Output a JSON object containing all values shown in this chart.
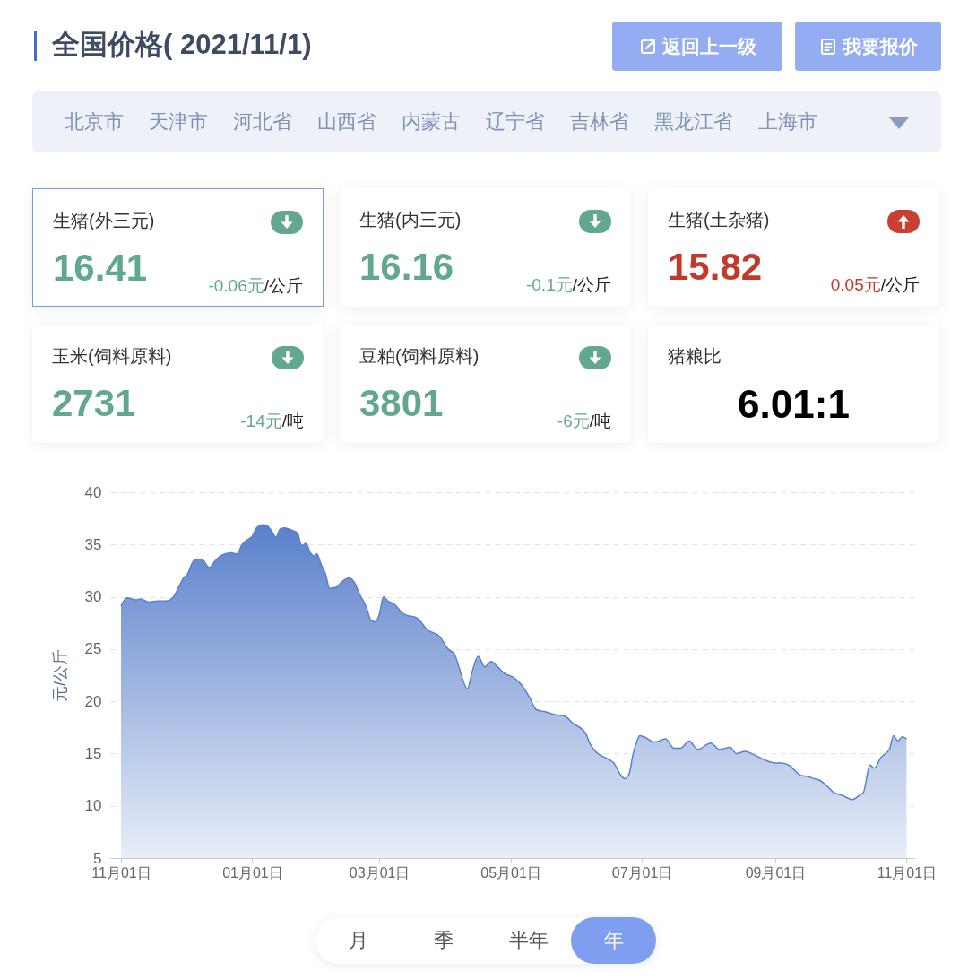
{
  "chart_data": [
    {
      "type": "other",
      "title": "全国价格( 2021/11/1)",
      "annotations": [
        "返回上一级",
        "我要报价",
        "北京市",
        "天津市",
        "河北省",
        "山西省",
        "内蒙古",
        "辽宁省",
        "吉林省",
        "黑龙江省",
        "上海市"
      ]
    },
    {
      "type": "other",
      "annotations": [
        "生猪(外三元)",
        "16.41",
        "-0.06元",
        "/公斤",
        "生猪(内三元)",
        "16.16",
        "-0.1元",
        "/公斤",
        "生猪(土杂猪)",
        "15.82",
        "0.05元",
        "/公斤",
        "玉米(饲料原料)",
        "2731",
        "-14元",
        "/吨",
        "豆粕(饲料原料)",
        "3801",
        "-6元",
        "/吨",
        "猪粮比",
        "6.01:1"
      ]
    },
    {
      "type": "area",
      "ylabel": "元/公斤",
      "color": "#5a80cb",
      "grid": "y",
      "xlim": [
        "2020-10-27",
        "2021-11-05"
      ],
      "ylim": [
        5,
        40
      ],
      "yticks": [
        5,
        10,
        15,
        20,
        25,
        30,
        35,
        40
      ],
      "xticks": [
        {
          "value": "2020-11-01",
          "label": "11月01日"
        },
        {
          "value": "2021-01-01",
          "label": "01月01日"
        },
        {
          "value": "2021-03-01",
          "label": "03月01日"
        },
        {
          "value": "2021-05-01",
          "label": "05月01日"
        },
        {
          "value": "2021-07-01",
          "label": "07月01日"
        },
        {
          "value": "2021-09-01",
          "label": "09月01日"
        },
        {
          "value": "2021-11-01",
          "label": "11月01日"
        }
      ],
      "x": [
        "2020-11-01",
        "2020-11-02",
        "2020-11-04",
        "2020-11-08",
        "2020-11-10",
        "2020-11-14",
        "2020-11-18",
        "2020-11-22",
        "2020-11-25",
        "2020-11-28",
        "2020-11-30",
        "2020-12-02",
        "2020-12-04",
        "2020-12-06",
        "2020-12-09",
        "2020-12-12",
        "2020-12-15",
        "2020-12-18",
        "2020-12-22",
        "2020-12-25",
        "2020-12-27",
        "2020-12-30",
        "2021-01-01",
        "2021-01-03",
        "2021-01-06",
        "2021-01-08",
        "2021-01-10",
        "2021-01-12",
        "2021-01-14",
        "2021-01-16",
        "2021-01-19",
        "2021-01-22",
        "2021-01-24",
        "2021-01-26",
        "2021-01-28",
        "2021-01-30",
        "2021-01-31",
        "2021-02-02",
        "2021-02-04",
        "2021-02-06",
        "2021-02-09",
        "2021-02-11",
        "2021-02-15",
        "2021-02-17",
        "2021-02-20",
        "2021-02-23",
        "2021-02-25",
        "2021-02-27",
        "2021-03-01",
        "2021-03-03",
        "2021-03-05",
        "2021-03-08",
        "2021-03-12",
        "2021-03-14",
        "2021-03-17",
        "2021-03-19",
        "2021-03-23",
        "2021-03-29",
        "2021-04-02",
        "2021-04-05",
        "2021-04-07",
        "2021-04-11",
        "2021-04-13",
        "2021-04-16",
        "2021-04-19",
        "2021-04-22",
        "2021-04-25",
        "2021-04-28",
        "2021-05-03",
        "2021-05-06",
        "2021-05-10",
        "2021-05-13",
        "2021-05-17",
        "2021-05-22",
        "2021-05-26",
        "2021-05-30",
        "2021-06-05",
        "2021-06-07",
        "2021-06-10",
        "2021-06-16",
        "2021-06-18",
        "2021-06-21",
        "2021-06-23",
        "2021-06-25",
        "2021-06-27",
        "2021-06-29",
        "2021-06-30",
        "2021-07-02",
        "2021-07-07",
        "2021-07-12",
        "2021-07-16",
        "2021-07-19",
        "2021-07-23",
        "2021-07-27",
        "2021-08-02",
        "2021-08-06",
        "2021-08-11",
        "2021-08-14",
        "2021-08-18",
        "2021-08-22",
        "2021-08-27",
        "2021-09-01",
        "2021-09-04",
        "2021-09-08",
        "2021-09-10",
        "2021-09-13",
        "2021-09-16",
        "2021-09-19",
        "2021-09-22",
        "2021-09-25",
        "2021-09-28",
        "2021-10-02",
        "2021-10-07",
        "2021-10-10",
        "2021-10-12",
        "2021-10-15",
        "2021-10-17",
        "2021-10-20",
        "2021-10-24",
        "2021-10-26",
        "2021-10-28",
        "2021-10-30",
        "2021-11-01"
      ],
      "values": [
        29.1,
        29.5,
        29.9,
        29.7,
        29.8,
        29.5,
        29.6,
        29.6,
        29.9,
        31.0,
        31.8,
        32.2,
        33.2,
        33.6,
        33.5,
        32.8,
        33.5,
        34.0,
        34.2,
        34.1,
        34.9,
        35.5,
        35.8,
        36.6,
        36.9,
        36.8,
        36.3,
        35.7,
        36.5,
        36.6,
        36.4,
        36.1,
        34.9,
        35.1,
        34.2,
        33.9,
        34.1,
        33.1,
        32.2,
        30.8,
        30.9,
        31.3,
        31.8,
        31.5,
        30.2,
        29.0,
        27.8,
        27.6,
        28.3,
        30.0,
        29.6,
        29.3,
        28.4,
        28.2,
        28.1,
        27.9,
        26.9,
        26.2,
        25.0,
        24.5,
        23.3,
        21.2,
        22.7,
        24.3,
        23.3,
        23.8,
        23.3,
        22.7,
        22.2,
        21.6,
        20.3,
        19.2,
        19.0,
        18.7,
        18.6,
        17.9,
        16.9,
        15.9,
        15.1,
        14.4,
        14.1,
        13.0,
        12.6,
        13.0,
        15.0,
        16.3,
        16.7,
        16.6,
        16.1,
        16.4,
        15.5,
        15.5,
        16.2,
        15.4,
        16.0,
        15.4,
        15.6,
        15.0,
        15.2,
        14.9,
        14.4,
        14.1,
        14.1,
        13.8,
        13.4,
        12.9,
        12.8,
        12.6,
        12.4,
        11.9,
        11.3,
        11.0,
        10.6,
        11.0,
        11.3,
        13.9,
        13.6,
        14.6,
        15.4,
        16.7,
        16.2,
        16.6,
        16.4
      ]
    },
    {
      "type": "other",
      "annotations": [
        "月",
        "季",
        "半年",
        "年"
      ]
    }
  ]
}
